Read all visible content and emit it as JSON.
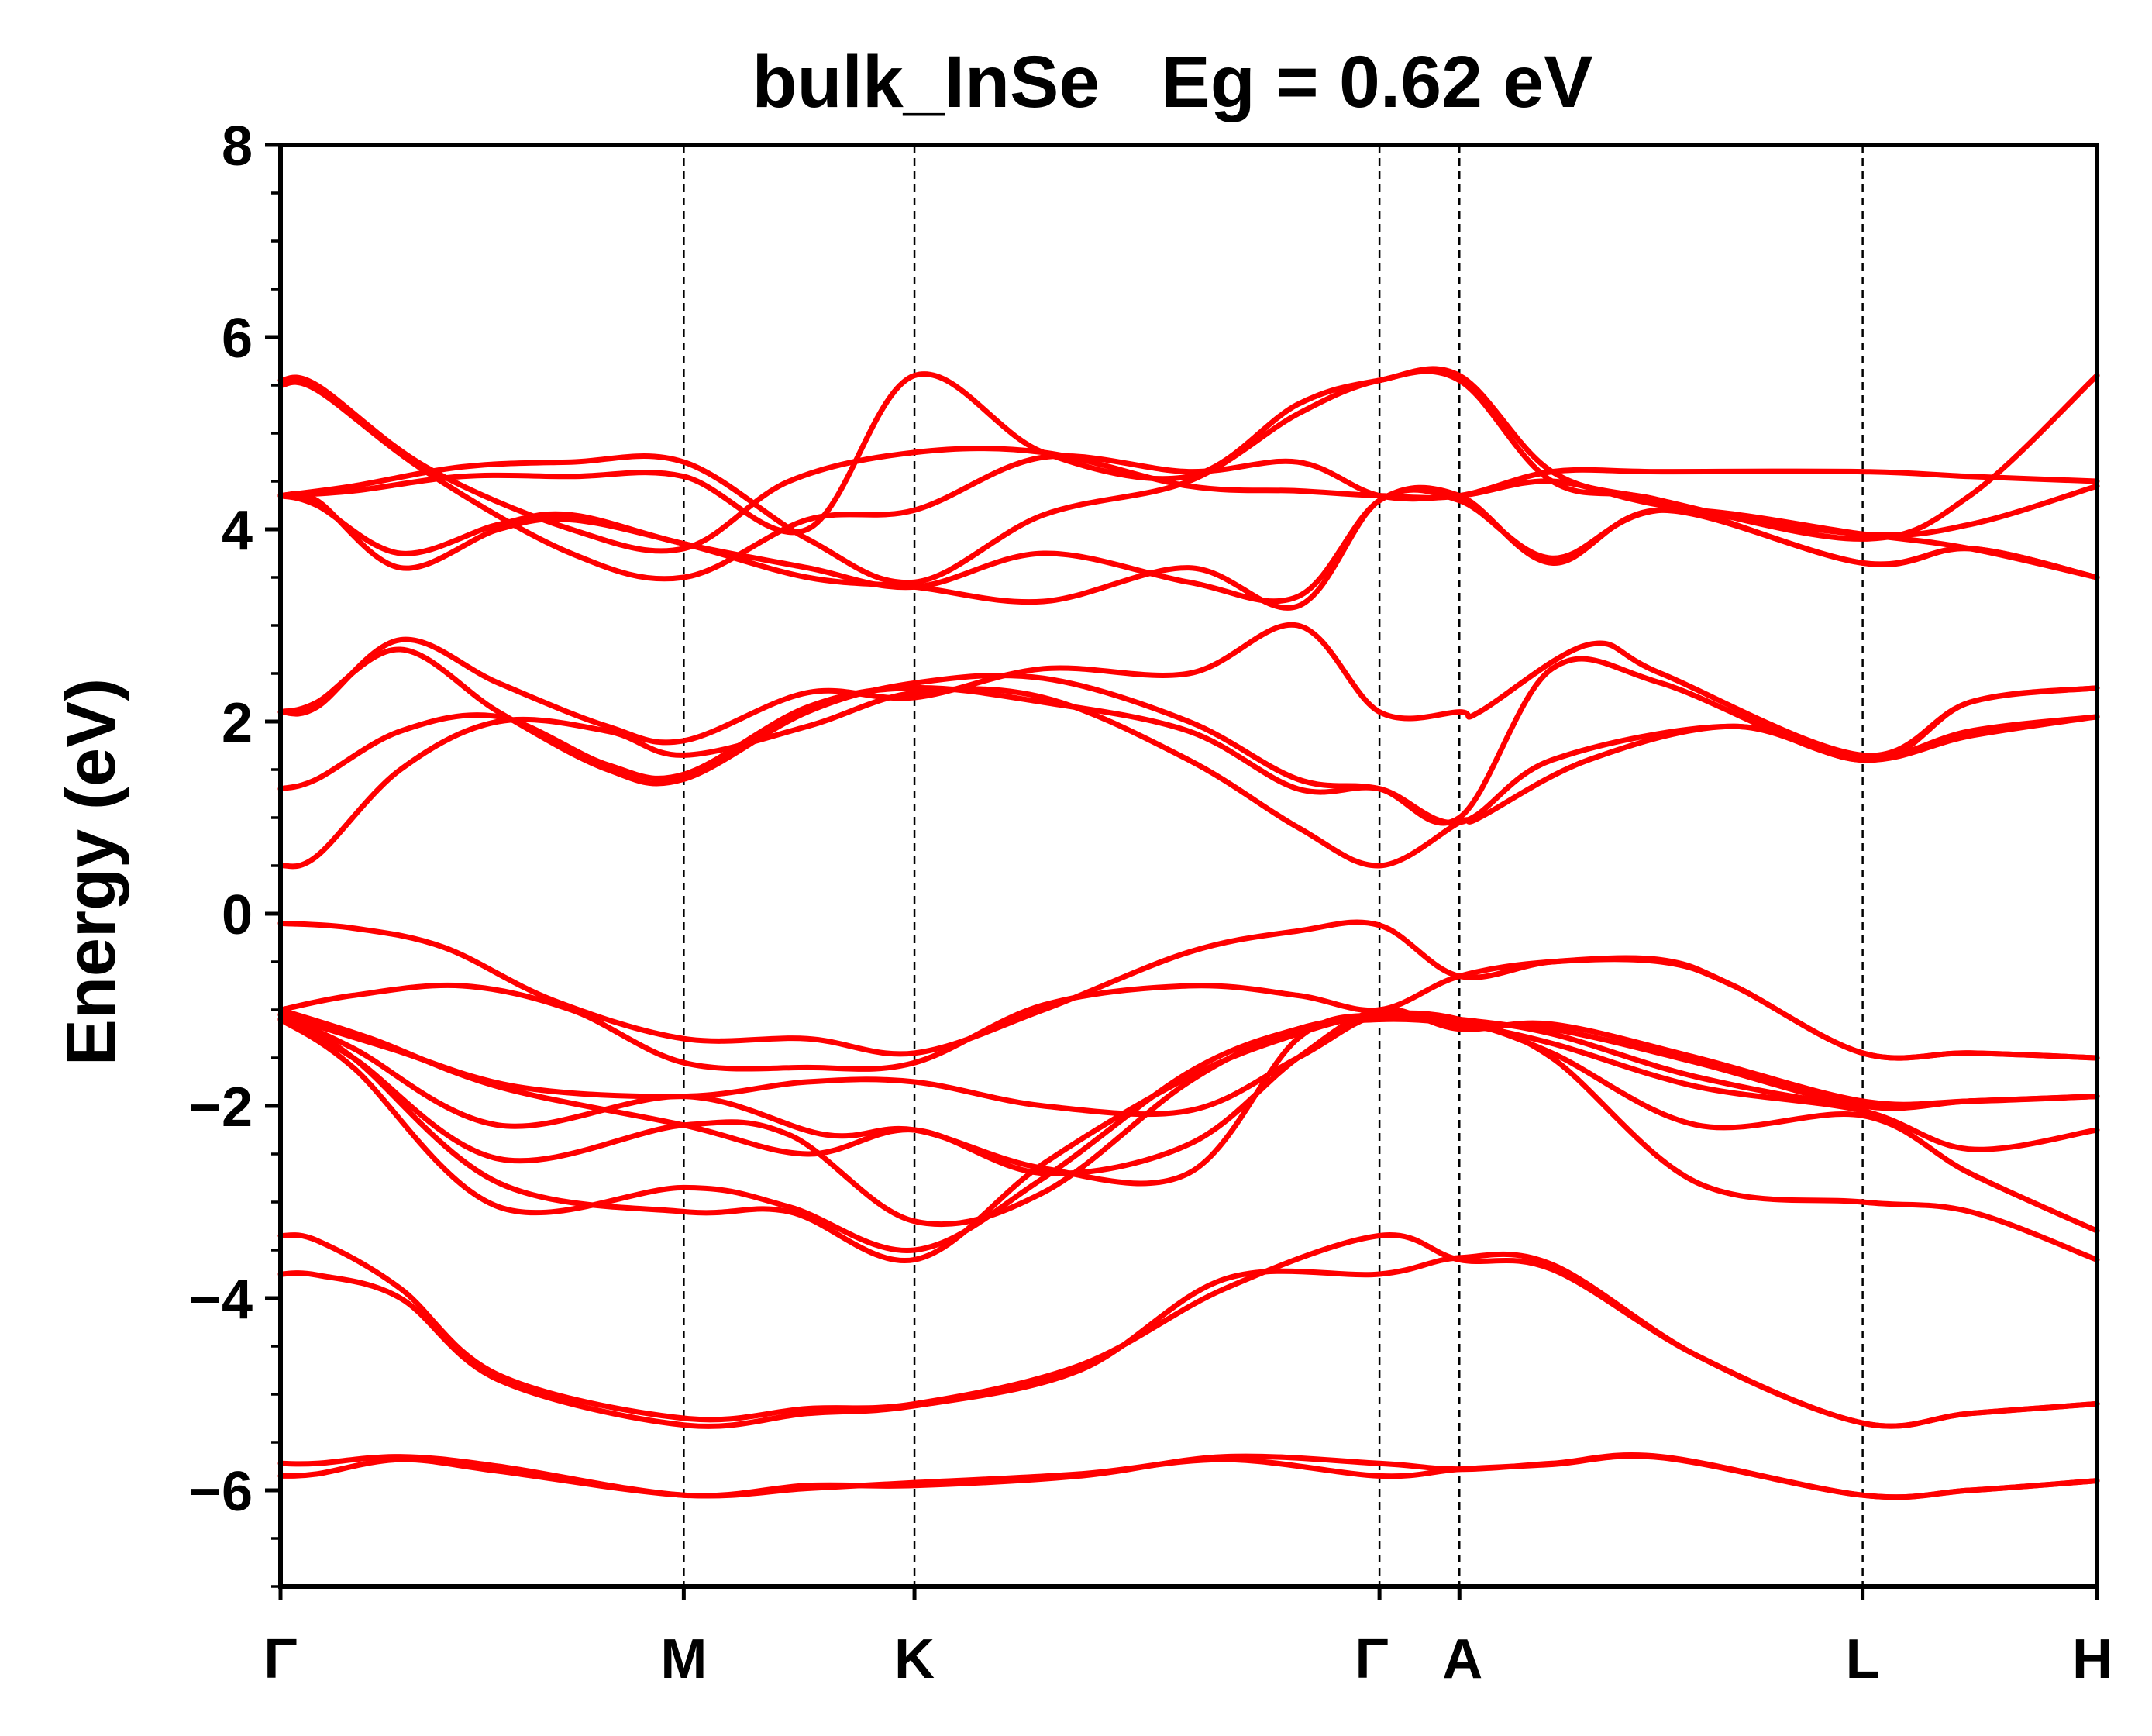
{
  "chart_data": {
    "type": "line",
    "title": "bulk_InSe   Eg = 0.62 eV",
    "xlabel": "",
    "ylabel": "Energy (eV)",
    "ylim": [
      -7,
      8
    ],
    "yticks": [
      8,
      6,
      4,
      2,
      0,
      -2,
      -4,
      -6
    ],
    "ytick_labels": [
      "8",
      "6",
      "4",
      "2",
      "0",
      "−2",
      "−4",
      "−6"
    ],
    "kpath": [
      {
        "label": "Γ",
        "x": 0.0
      },
      {
        "label": "M",
        "x": 0.222
      },
      {
        "label": "K",
        "x": 0.349
      },
      {
        "label": "Γ",
        "x": 0.605
      },
      {
        "label": "A",
        "x": 0.649
      },
      {
        "label": "L",
        "x": 0.871
      },
      {
        "label": "H",
        "x": 1.0
      }
    ],
    "series": [
      {
        "x": [
          0,
          0.02,
          0.066,
          0.12,
          0.222,
          0.29,
          0.349,
          0.44,
          0.52,
          0.605,
          0.649,
          0.7,
          0.76,
          0.871,
          0.93,
          1.0
        ],
        "values": [
          -5.72,
          -5.72,
          -5.65,
          -5.75,
          -6.05,
          -5.95,
          -5.95,
          -5.85,
          -5.65,
          -5.72,
          -5.78,
          -5.72,
          -5.65,
          -6.05,
          -6.0,
          -5.9
        ]
      },
      {
        "x": [
          0,
          0.02,
          0.066,
          0.12,
          0.222,
          0.29,
          0.349,
          0.44,
          0.52,
          0.605,
          0.649,
          0.7,
          0.76,
          0.871,
          0.93,
          1.0
        ],
        "values": [
          -5.85,
          -5.83,
          -5.68,
          -5.8,
          -6.05,
          -5.98,
          -5.92,
          -5.83,
          -5.68,
          -5.85,
          -5.78,
          -5.73,
          -5.66,
          -6.05,
          -6.0,
          -5.9
        ]
      },
      {
        "x": [
          0,
          0.02,
          0.066,
          0.12,
          0.222,
          0.29,
          0.349,
          0.44,
          0.52,
          0.605,
          0.649,
          0.7,
          0.78,
          0.871,
          0.93,
          1.0
        ],
        "values": [
          -3.35,
          -3.4,
          -3.9,
          -4.8,
          -5.25,
          -5.15,
          -5.1,
          -4.7,
          -3.9,
          -3.35,
          -3.6,
          -3.7,
          -4.6,
          -5.3,
          -5.2,
          -5.1
        ]
      },
      {
        "x": [
          0,
          0.02,
          0.066,
          0.12,
          0.222,
          0.29,
          0.349,
          0.44,
          0.52,
          0.605,
          0.649,
          0.7,
          0.78,
          0.871,
          0.93,
          1.0
        ],
        "values": [
          -3.75,
          -3.76,
          -4.0,
          -4.85,
          -5.32,
          -5.2,
          -5.12,
          -4.75,
          -3.8,
          -3.75,
          -3.58,
          -3.65,
          -4.6,
          -5.3,
          -5.2,
          -5.1
        ]
      },
      {
        "x": [
          0,
          0.04,
          0.12,
          0.222,
          0.28,
          0.349,
          0.42,
          0.5,
          0.56,
          0.605,
          0.649,
          0.7,
          0.78,
          0.871,
          0.93,
          1.0
        ],
        "values": [
          -1.05,
          -1.5,
          -2.8,
          -3.1,
          -3.1,
          -3.6,
          -2.6,
          -1.7,
          -1.25,
          -1.05,
          -1.1,
          -1.5,
          -2.8,
          -3.0,
          -3.1,
          -3.6
        ]
      },
      {
        "x": [
          0,
          0.04,
          0.12,
          0.222,
          0.28,
          0.349,
          0.42,
          0.5,
          0.56,
          0.605,
          0.649,
          0.7,
          0.78,
          0.871,
          0.93,
          1.0
        ],
        "values": [
          -1.1,
          -1.6,
          -3.05,
          -2.85,
          -3.05,
          -3.5,
          -2.75,
          -1.65,
          -1.2,
          -1.1,
          -1.12,
          -1.45,
          -2.2,
          -2.1,
          -2.7,
          -3.3
        ]
      },
      {
        "x": [
          0,
          0.04,
          0.12,
          0.222,
          0.28,
          0.349,
          0.42,
          0.5,
          0.56,
          0.605,
          0.649,
          0.7,
          0.78,
          0.871,
          0.93,
          1.0
        ],
        "values": [
          -1.1,
          -1.5,
          -2.55,
          -2.2,
          -2.3,
          -3.2,
          -2.9,
          -1.75,
          -1.2,
          -1.1,
          -1.15,
          -1.35,
          -1.8,
          -2.05,
          -2.45,
          -2.25
        ]
      },
      {
        "x": [
          0,
          0.04,
          0.12,
          0.222,
          0.3,
          0.349,
          0.42,
          0.5,
          0.56,
          0.605,
          0.649,
          0.7,
          0.78,
          0.871,
          0.93,
          1.0
        ],
        "values": [
          -1.05,
          -1.4,
          -2.2,
          -1.9,
          -2.3,
          -2.25,
          -2.65,
          -2.7,
          -1.3,
          -1.05,
          -1.1,
          -1.25,
          -1.7,
          -2.0,
          -1.95,
          -1.9
        ]
      },
      {
        "x": [
          0,
          0.05,
          0.12,
          0.222,
          0.29,
          0.349,
          0.42,
          0.5,
          0.56,
          0.605,
          0.649,
          0.7,
          0.78,
          0.871,
          0.93,
          1.0
        ],
        "values": [
          -1.0,
          -1.3,
          -1.8,
          -2.2,
          -2.5,
          -2.25,
          -2.7,
          -2.4,
          -1.5,
          -1.0,
          -1.2,
          -1.15,
          -1.5,
          -1.95,
          -1.95,
          -1.9
        ]
      },
      {
        "x": [
          0,
          0.06,
          0.13,
          0.222,
          0.29,
          0.349,
          0.42,
          0.5,
          0.56,
          0.605,
          0.649,
          0.7,
          0.78,
          0.871,
          0.93,
          1.0
        ],
        "values": [
          -1.05,
          -1.4,
          -1.8,
          -1.9,
          -1.75,
          -1.75,
          -2.0,
          -2.05,
          -1.5,
          -1.05,
          -1.15,
          -1.2,
          -1.55,
          -2.0,
          -1.95,
          -1.9
        ]
      },
      {
        "x": [
          0,
          0.04,
          0.1,
          0.16,
          0.222,
          0.29,
          0.349,
          0.42,
          0.5,
          0.56,
          0.605,
          0.649,
          0.7,
          0.76,
          0.8,
          0.871,
          0.93,
          1.0
        ],
        "values": [
          -1.0,
          -0.85,
          -0.75,
          -1.0,
          -1.55,
          -1.6,
          -1.55,
          -0.95,
          -0.75,
          -0.85,
          -1.0,
          -0.65,
          -0.5,
          -0.5,
          -0.75,
          -1.45,
          -1.45,
          -1.5
        ]
      },
      {
        "x": [
          0,
          0.04,
          0.09,
          0.15,
          0.222,
          0.29,
          0.349,
          0.42,
          0.5,
          0.56,
          0.605,
          0.649,
          0.7,
          0.76,
          0.8,
          0.871,
          0.93,
          1.0
        ],
        "values": [
          -0.1,
          -0.15,
          -0.35,
          -0.9,
          -1.3,
          -1.3,
          -1.45,
          -1.0,
          -0.4,
          -0.18,
          -0.12,
          -0.65,
          -0.5,
          -0.48,
          -0.75,
          -1.45,
          -1.45,
          -1.5
        ]
      },
      {
        "x": [
          0,
          0.02,
          0.066,
          0.12,
          0.18,
          0.222,
          0.29,
          0.349,
          0.42,
          0.5,
          0.56,
          0.605,
          0.649,
          0.66,
          0.72,
          0.8,
          0.871,
          0.93,
          1.0
        ],
        "values": [
          0.5,
          0.6,
          1.5,
          2.0,
          1.9,
          1.65,
          1.95,
          2.3,
          2.25,
          1.6,
          0.9,
          0.5,
          0.95,
          1.0,
          1.6,
          1.95,
          1.6,
          1.85,
          2.05
        ]
      },
      {
        "x": [
          0,
          0.02,
          0.066,
          0.12,
          0.18,
          0.222,
          0.29,
          0.349,
          0.42,
          0.5,
          0.56,
          0.605,
          0.649,
          0.7,
          0.8,
          0.871,
          0.93,
          1.0
        ],
        "values": [
          1.3,
          1.4,
          1.9,
          2.05,
          1.55,
          1.45,
          2.15,
          2.35,
          2.2,
          1.9,
          1.3,
          1.3,
          0.95,
          1.6,
          1.95,
          1.6,
          1.9,
          2.05
        ]
      },
      {
        "x": [
          0,
          0.02,
          0.066,
          0.12,
          0.18,
          0.222,
          0.29,
          0.349,
          0.42,
          0.5,
          0.56,
          0.605,
          0.649,
          0.7,
          0.76,
          0.871,
          0.93,
          1.0
        ],
        "values": [
          2.1,
          2.2,
          2.75,
          2.1,
          1.5,
          1.4,
          2.1,
          2.4,
          2.45,
          2.0,
          1.4,
          1.3,
          1.0,
          2.55,
          2.4,
          1.6,
          2.2,
          2.35
        ]
      },
      {
        "x": [
          0,
          0.02,
          0.066,
          0.12,
          0.18,
          0.222,
          0.29,
          0.349,
          0.42,
          0.5,
          0.56,
          0.605,
          0.649,
          0.66,
          0.72,
          0.76,
          0.871,
          0.93,
          1.0
        ],
        "values": [
          2.1,
          2.15,
          2.85,
          2.4,
          1.95,
          1.8,
          2.3,
          2.25,
          2.55,
          2.5,
          3.0,
          2.1,
          2.1,
          2.1,
          2.8,
          2.5,
          1.65,
          2.2,
          2.35
        ]
      },
      {
        "x": [
          0,
          0.02,
          0.066,
          0.12,
          0.16,
          0.222,
          0.29,
          0.349,
          0.42,
          0.5,
          0.56,
          0.605,
          0.649,
          0.7,
          0.76,
          0.871,
          0.93,
          1.0
        ],
        "values": [
          4.35,
          4.3,
          3.6,
          4.0,
          4.1,
          3.85,
          3.5,
          3.4,
          3.25,
          3.6,
          3.2,
          4.3,
          4.3,
          3.7,
          4.2,
          3.95,
          3.8,
          3.5
        ]
      },
      {
        "x": [
          0,
          0.02,
          0.066,
          0.12,
          0.16,
          0.222,
          0.29,
          0.349,
          0.42,
          0.5,
          0.56,
          0.605,
          0.649,
          0.7,
          0.76,
          0.871,
          0.93,
          1.0
        ],
        "values": [
          4.35,
          4.25,
          3.75,
          4.05,
          4.15,
          3.85,
          3.6,
          3.4,
          3.75,
          3.45,
          3.3,
          4.3,
          4.35,
          3.65,
          4.2,
          3.65,
          3.8,
          3.5
        ]
      },
      {
        "x": [
          0,
          0.02,
          0.08,
          0.16,
          0.222,
          0.29,
          0.349,
          0.42,
          0.5,
          0.56,
          0.605,
          0.649,
          0.7,
          0.76,
          0.871,
          0.93,
          1.0
        ],
        "values": [
          5.5,
          5.45,
          4.6,
          3.75,
          3.5,
          4.1,
          4.2,
          4.75,
          4.6,
          4.7,
          4.35,
          4.35,
          4.5,
          4.25,
          3.95,
          4.05,
          4.45
        ]
      },
      {
        "x": [
          0,
          0.02,
          0.08,
          0.16,
          0.222,
          0.28,
          0.349,
          0.42,
          0.5,
          0.56,
          0.605,
          0.649,
          0.7,
          0.76,
          0.871,
          0.93,
          1.0
        ],
        "values": [
          5.55,
          5.5,
          4.65,
          4.0,
          3.8,
          4.5,
          4.8,
          4.8,
          4.45,
          4.4,
          4.35,
          4.35,
          4.6,
          4.6,
          4.6,
          4.55,
          4.5
        ]
      },
      {
        "x": [
          0,
          0.04,
          0.1,
          0.16,
          0.222,
          0.29,
          0.349,
          0.42,
          0.5,
          0.56,
          0.605,
          0.649,
          0.7,
          0.76,
          0.871,
          0.93,
          1.0
        ],
        "values": [
          4.35,
          4.45,
          4.65,
          4.7,
          4.7,
          3.9,
          3.45,
          4.15,
          4.5,
          5.2,
          5.55,
          5.55,
          4.5,
          4.3,
          3.65,
          3.8,
          3.5
        ]
      },
      {
        "x": [
          0,
          0.04,
          0.1,
          0.16,
          0.222,
          0.29,
          0.349,
          0.42,
          0.5,
          0.56,
          0.605,
          0.649,
          0.7,
          0.76,
          0.871,
          0.93,
          1.0
        ],
        "values": [
          4.35,
          4.4,
          4.55,
          4.55,
          4.55,
          4.0,
          5.6,
          4.8,
          4.55,
          5.3,
          5.55,
          5.6,
          4.6,
          4.3,
          3.9,
          4.35,
          5.6
        ]
      }
    ]
  }
}
